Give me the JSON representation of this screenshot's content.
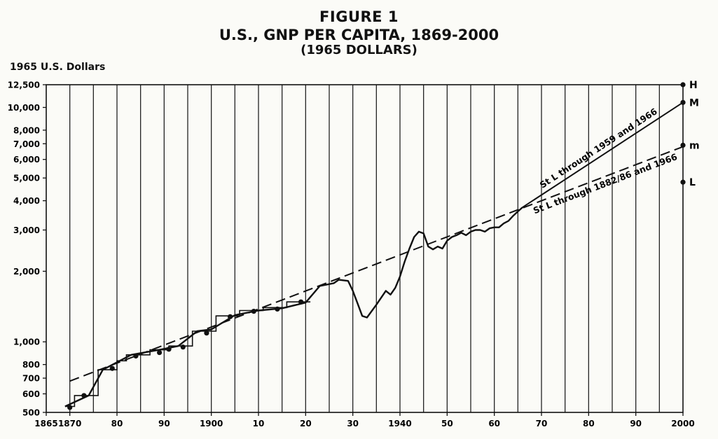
{
  "figure_label": "FIGURE 1",
  "title": "U.S., GNP PER CAPITA, 1869-2000",
  "subtitle": "(1965 DOLLARS)",
  "ylabel": "1965 U.S. Dollars",
  "chart_data": {
    "type": "line",
    "title": "U.S., GNP PER CAPITA, 1869-2000",
    "subtitle": "(1965 DOLLARS)",
    "ylabel": "1965 U.S. Dollars",
    "yscale": "log",
    "xlim": [
      1865,
      2000
    ],
    "ylim": [
      500,
      12500
    ],
    "x_ticks": [
      {
        "x": 1865,
        "label": "1865"
      },
      {
        "x": 1870,
        "label": "1870"
      },
      {
        "x": 1880,
        "label": "80"
      },
      {
        "x": 1890,
        "label": "90"
      },
      {
        "x": 1900,
        "label": "1900"
      },
      {
        "x": 1910,
        "label": "10"
      },
      {
        "x": 1920,
        "label": "20"
      },
      {
        "x": 1930,
        "label": "30"
      },
      {
        "x": 1940,
        "label": "1940"
      },
      {
        "x": 1950,
        "label": "50"
      },
      {
        "x": 1960,
        "label": "60"
      },
      {
        "x": 1970,
        "label": "70"
      },
      {
        "x": 1980,
        "label": "80"
      },
      {
        "x": 1990,
        "label": "90"
      },
      {
        "x": 2000,
        "label": "2000"
      }
    ],
    "y_ticks": [
      {
        "y": 500,
        "label": "500"
      },
      {
        "y": 600,
        "label": "600"
      },
      {
        "y": 700,
        "label": "700"
      },
      {
        "y": 800,
        "label": "800"
      },
      {
        "y": 1000,
        "label": "1,000"
      },
      {
        "y": 2000,
        "label": "2,000"
      },
      {
        "y": 3000,
        "label": "3,000"
      },
      {
        "y": 4000,
        "label": "4,000"
      },
      {
        "y": 5000,
        "label": "5,000"
      },
      {
        "y": 6000,
        "label": "6,000"
      },
      {
        "y": 7000,
        "label": "7,000"
      },
      {
        "y": 8000,
        "label": "8,000"
      },
      {
        "y": 10000,
        "label": "10,000"
      },
      {
        "y": 12500,
        "label": "12,500"
      }
    ],
    "grid": "vertical lines every 5 years from 1865 to 2000",
    "annual_series": [
      [
        1869,
        530
      ],
      [
        1874,
        590
      ],
      [
        1877,
        760
      ],
      [
        1883,
        880
      ],
      [
        1889,
        925
      ],
      [
        1893,
        960
      ],
      [
        1897,
        1110
      ],
      [
        1900,
        1130
      ],
      [
        1905,
        1300
      ],
      [
        1910,
        1360
      ],
      [
        1915,
        1390
      ],
      [
        1920,
        1470
      ],
      [
        1923,
        1730
      ],
      [
        1926,
        1780
      ],
      [
        1927,
        1840
      ],
      [
        1929,
        1820
      ],
      [
        1930,
        1650
      ],
      [
        1931,
        1460
      ],
      [
        1932,
        1290
      ],
      [
        1933,
        1270
      ],
      [
        1935,
        1440
      ],
      [
        1937,
        1650
      ],
      [
        1938,
        1590
      ],
      [
        1939,
        1700
      ],
      [
        1940,
        1900
      ],
      [
        1941,
        2200
      ],
      [
        1942,
        2500
      ],
      [
        1943,
        2800
      ],
      [
        1944,
        2950
      ],
      [
        1945,
        2900
      ],
      [
        1946,
        2550
      ],
      [
        1947,
        2480
      ],
      [
        1948,
        2550
      ],
      [
        1949,
        2500
      ],
      [
        1950,
        2700
      ],
      [
        1951,
        2800
      ],
      [
        1952,
        2850
      ],
      [
        1953,
        2920
      ],
      [
        1954,
        2850
      ],
      [
        1955,
        2950
      ],
      [
        1956,
        3000
      ],
      [
        1957,
        3000
      ],
      [
        1958,
        2950
      ],
      [
        1959,
        3050
      ],
      [
        1960,
        3080
      ],
      [
        1961,
        3080
      ],
      [
        1962,
        3200
      ],
      [
        1963,
        3280
      ],
      [
        1964,
        3450
      ],
      [
        1965,
        3600
      ],
      [
        1966,
        3750
      ]
    ],
    "step_series": [
      [
        1869,
        530
      ],
      [
        1871,
        530
      ],
      [
        1871,
        590
      ],
      [
        1876,
        590
      ],
      [
        1876,
        760
      ],
      [
        1880,
        760
      ],
      [
        1880,
        830
      ],
      [
        1882,
        830
      ],
      [
        1882,
        880
      ],
      [
        1887,
        880
      ],
      [
        1887,
        925
      ],
      [
        1891,
        925
      ],
      [
        1891,
        960
      ],
      [
        1896,
        960
      ],
      [
        1896,
        1110
      ],
      [
        1901,
        1110
      ],
      [
        1901,
        1290
      ],
      [
        1906,
        1290
      ],
      [
        1906,
        1360
      ],
      [
        1911,
        1360
      ],
      [
        1911,
        1400
      ],
      [
        1916,
        1400
      ],
      [
        1916,
        1480
      ],
      [
        1921,
        1480
      ]
    ],
    "dot_points": [
      [
        1870,
        525
      ],
      [
        1873,
        590
      ],
      [
        1879,
        770
      ],
      [
        1884,
        870
      ],
      [
        1889,
        900
      ],
      [
        1891,
        930
      ],
      [
        1894,
        950
      ],
      [
        1899,
        1090
      ],
      [
        1904,
        1280
      ],
      [
        1909,
        1350
      ],
      [
        1914,
        1380
      ],
      [
        1919,
        1480
      ],
      [
        2000,
        12500
      ],
      [
        2000,
        10500
      ],
      [
        2000,
        6900
      ],
      [
        2000,
        4800
      ]
    ],
    "trend_lines": [
      {
        "label": "St L through 1959 and 1966",
        "style": "solid",
        "points": [
          [
            1966,
            3750
          ],
          [
            2000,
            10500
          ]
        ]
      },
      {
        "label": "St L through 1882/86 and 1966",
        "style": "dashed",
        "points": [
          [
            1870,
            680
          ],
          [
            2000,
            6800
          ]
        ]
      }
    ],
    "projections_2000": [
      {
        "label": "H",
        "value": 12500
      },
      {
        "label": "M",
        "value": 10500
      },
      {
        "label": "m",
        "value": 6900
      },
      {
        "label": "L",
        "value": 4800
      }
    ]
  }
}
